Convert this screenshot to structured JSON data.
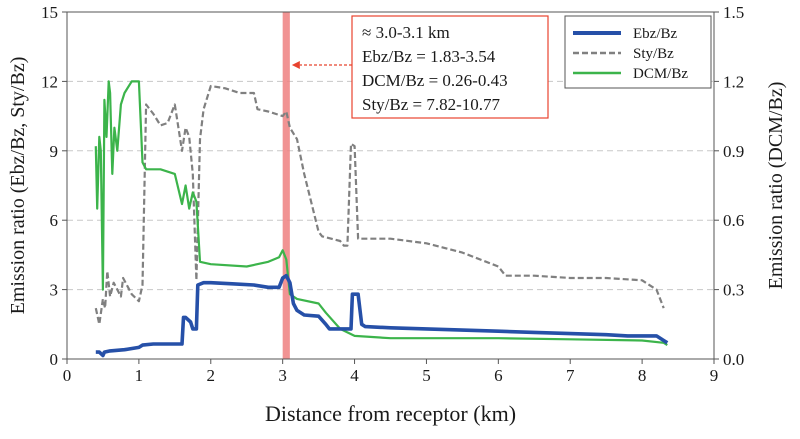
{
  "chart_data": {
    "type": "line",
    "title": "",
    "xlabel": "Distance from receptor (km)",
    "ylabel_left": "Emission ratio (Ebz/Bz, Sty/Bz)",
    "ylabel_right": "Emission ratio (DCM/Bz)",
    "xlim": [
      0,
      9
    ],
    "ylim_left": [
      0,
      15
    ],
    "ylim_right": [
      0,
      1.5
    ],
    "x_ticks": [
      "0",
      "1",
      "2",
      "3",
      "4",
      "5",
      "6",
      "7",
      "8",
      "9"
    ],
    "y_ticks_left": [
      "0",
      "3",
      "6",
      "9",
      "12",
      "15"
    ],
    "y_ticks_right": [
      "0.0",
      "0.3",
      "0.6",
      "0.9",
      "1.2",
      "1.5"
    ],
    "grid": "horizontal dashed",
    "legend_placement": "top-right",
    "highlight_band": {
      "x_start": 3.0,
      "x_end": 3.1,
      "color": "#ee8080"
    },
    "annotation_lines": [
      "≈ 3.0-3.1 km",
      "Ebz/Bz = 1.83-3.54",
      "DCM/Bz = 0.26-0.43",
      "Sty/Bz = 7.82-10.77"
    ],
    "series": [
      {
        "name": "Ebz/Bz",
        "axis": "left",
        "color": "#2650a8",
        "style": "solid-thick",
        "x": [
          0.4,
          0.45,
          0.5,
          0.52,
          0.6,
          0.8,
          1.0,
          1.05,
          1.2,
          1.4,
          1.6,
          1.62,
          1.65,
          1.72,
          1.75,
          1.8,
          1.82,
          1.9,
          2.0,
          2.3,
          2.6,
          2.8,
          2.95,
          3.0,
          3.05,
          3.1,
          3.15,
          3.2,
          3.3,
          3.5,
          3.6,
          3.65,
          3.8,
          3.95,
          3.97,
          4.0,
          4.05,
          4.1,
          4.15,
          4.5,
          5.0,
          5.5,
          6.0,
          6.5,
          7.0,
          7.5,
          7.8,
          8.0,
          8.2,
          8.3,
          8.35
        ],
        "y": [
          0.3,
          0.3,
          0.15,
          0.3,
          0.35,
          0.4,
          0.5,
          0.6,
          0.65,
          0.65,
          0.65,
          1.8,
          1.8,
          1.6,
          1.3,
          1.3,
          3.2,
          3.3,
          3.3,
          3.25,
          3.2,
          3.1,
          3.1,
          3.5,
          3.6,
          3.3,
          2.4,
          2.1,
          1.9,
          1.85,
          1.5,
          1.3,
          1.3,
          1.3,
          2.8,
          2.8,
          2.8,
          1.5,
          1.4,
          1.35,
          1.3,
          1.25,
          1.2,
          1.15,
          1.1,
          1.05,
          1.0,
          1.0,
          1.0,
          0.8,
          0.7
        ]
      },
      {
        "name": "Sty/Bz",
        "axis": "left",
        "color": "#808080",
        "style": "dashed",
        "x": [
          0.4,
          0.45,
          0.5,
          0.53,
          0.56,
          0.6,
          0.65,
          0.75,
          0.78,
          0.9,
          1.0,
          1.05,
          1.1,
          1.15,
          1.2,
          1.3,
          1.4,
          1.5,
          1.6,
          1.65,
          1.7,
          1.75,
          1.8,
          1.85,
          1.9,
          2.0,
          2.2,
          2.4,
          2.6,
          2.65,
          2.8,
          3.0,
          3.05,
          3.1,
          3.2,
          3.3,
          3.5,
          3.55,
          3.8,
          3.85,
          3.9,
          3.95,
          4.0,
          4.05,
          4.3,
          4.5,
          5.0,
          5.5,
          6.0,
          6.1,
          6.5,
          7.0,
          7.5,
          8.0,
          8.2,
          8.3
        ],
        "y": [
          2.2,
          1.5,
          2.6,
          2.2,
          3.8,
          2.7,
          3.3,
          2.7,
          3.5,
          2.8,
          2.5,
          3.2,
          11.0,
          10.8,
          10.6,
          10.1,
          10.2,
          11.0,
          9.0,
          10.0,
          9.6,
          8.0,
          3.4,
          9.5,
          10.8,
          11.8,
          11.7,
          11.5,
          11.5,
          10.8,
          10.7,
          10.5,
          10.7,
          10.0,
          9.5,
          8.0,
          5.5,
          5.3,
          5.1,
          4.9,
          4.9,
          9.3,
          9.2,
          5.2,
          5.2,
          5.2,
          5.0,
          4.6,
          4.0,
          3.6,
          3.6,
          3.5,
          3.5,
          3.4,
          3.0,
          2.2
        ]
      },
      {
        "name": "DCM/Bz",
        "axis": "right",
        "color": "#3cb44b",
        "style": "solid",
        "x": [
          0.4,
          0.42,
          0.45,
          0.47,
          0.5,
          0.52,
          0.55,
          0.58,
          0.6,
          0.63,
          0.66,
          0.7,
          0.75,
          0.8,
          0.9,
          1.0,
          1.05,
          1.1,
          1.3,
          1.5,
          1.6,
          1.65,
          1.7,
          1.75,
          1.8,
          1.85,
          2.0,
          2.5,
          2.8,
          2.95,
          3.0,
          3.05,
          3.1,
          3.2,
          3.5,
          3.6,
          3.8,
          4.0,
          4.5,
          5.0,
          6.0,
          7.0,
          8.0,
          8.3,
          8.35
        ],
        "y": [
          0.92,
          0.65,
          0.96,
          0.9,
          0.3,
          1.12,
          0.96,
          1.2,
          1.15,
          0.8,
          1.0,
          0.9,
          1.1,
          1.15,
          1.2,
          1.2,
          0.85,
          0.82,
          0.82,
          0.8,
          0.67,
          0.75,
          0.65,
          0.72,
          0.68,
          0.42,
          0.41,
          0.4,
          0.42,
          0.44,
          0.47,
          0.43,
          0.28,
          0.26,
          0.24,
          0.2,
          0.13,
          0.1,
          0.09,
          0.09,
          0.09,
          0.085,
          0.08,
          0.07,
          0.06
        ]
      }
    ]
  }
}
